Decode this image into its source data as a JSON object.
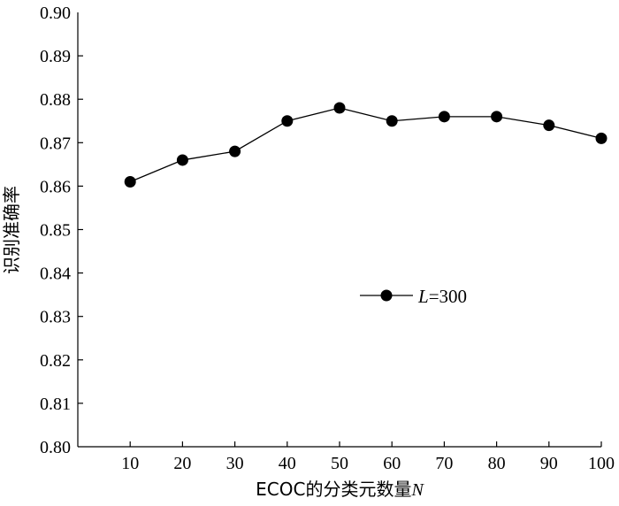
{
  "chart_data": {
    "type": "line",
    "x": [
      10,
      20,
      30,
      40,
      50,
      60,
      70,
      80,
      90,
      100
    ],
    "series": [
      {
        "name": "L=300",
        "name_italic": "L",
        "name_rest": "=300",
        "values": [
          0.861,
          0.866,
          0.868,
          0.875,
          0.878,
          0.875,
          0.876,
          0.876,
          0.874,
          0.871
        ]
      }
    ],
    "xlabel": "ECOC的分类元数量",
    "xlabel_var": "N",
    "ylabel": "识别准确率",
    "xlim": [
      0,
      100
    ],
    "ylim": [
      0.8,
      0.9
    ],
    "xticks": [
      "10",
      "20",
      "30",
      "40",
      "50",
      "60",
      "70",
      "80",
      "90",
      "100"
    ],
    "yticks": [
      "0.80",
      "0.81",
      "0.82",
      "0.83",
      "0.84",
      "0.85",
      "0.86",
      "0.87",
      "0.88",
      "0.89",
      "0.90"
    ],
    "grid": false,
    "legend_position": "center-right"
  }
}
